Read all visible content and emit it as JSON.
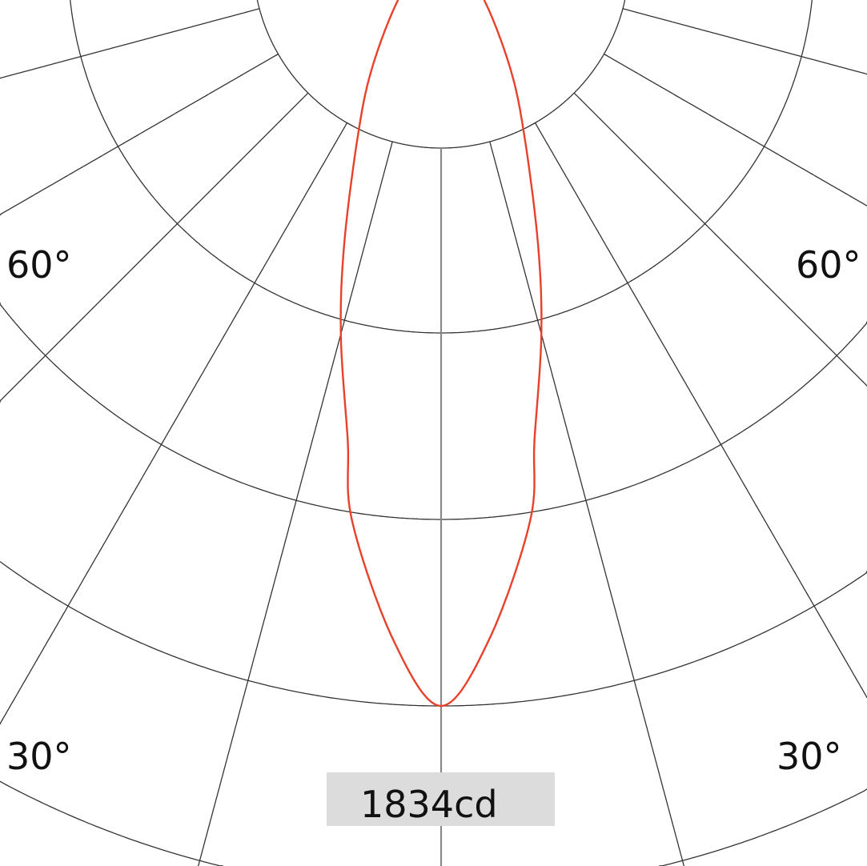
{
  "chart_data": {
    "type": "polar",
    "title": "",
    "unit": "cd",
    "max_label": "1834cd",
    "max_intensity": 1834,
    "ring_step": 458.5,
    "ring_count": 5,
    "radial_step_deg": 15,
    "angle_labels": [
      {
        "text": "60°",
        "side": "left",
        "angle": 60
      },
      {
        "text": "60°",
        "side": "right",
        "angle": 60
      },
      {
        "text": "30°",
        "side": "left",
        "angle": 30
      },
      {
        "text": "30°",
        "side": "right",
        "angle": 30
      }
    ],
    "series": [
      {
        "angles_deg": [
          0,
          4,
          9,
          11,
          15,
          19,
          26,
          33,
          47,
          60,
          75,
          90
        ],
        "intensity_cd": [
          1834,
          1677,
          1397,
          1203,
          952,
          729,
          460,
          307,
          145,
          60,
          15,
          0
        ]
      }
    ],
    "grid": true,
    "colors": {
      "curve": "#e8402a",
      "grid": "#333333",
      "axis": "#888888",
      "label_box": "#dcdcdc"
    }
  }
}
